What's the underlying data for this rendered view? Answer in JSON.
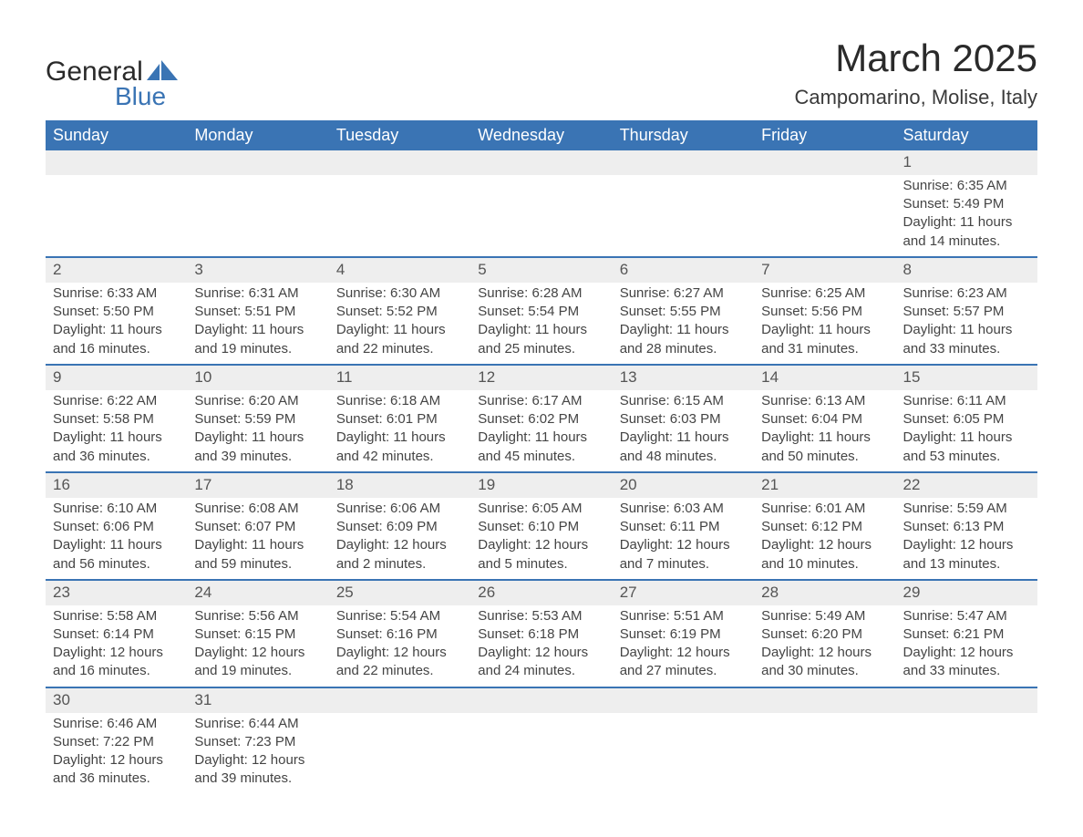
{
  "brand": {
    "name1": "General",
    "name2": "Blue"
  },
  "title": "March 2025",
  "location": "Campomarino, Molise, Italy",
  "colors": {
    "header_bg": "#3a74b4",
    "header_fg": "#ffffff",
    "daynum_bg": "#eeeeee",
    "row_border": "#3a74b4",
    "text": "#3a3a3a",
    "page_bg": "#ffffff"
  },
  "weekdays": [
    "Sunday",
    "Monday",
    "Tuesday",
    "Wednesday",
    "Thursday",
    "Friday",
    "Saturday"
  ],
  "weeks": [
    [
      null,
      null,
      null,
      null,
      null,
      null,
      {
        "n": "1",
        "sr": "6:35 AM",
        "ss": "5:49 PM",
        "dl": "11 hours and 14 minutes."
      }
    ],
    [
      {
        "n": "2",
        "sr": "6:33 AM",
        "ss": "5:50 PM",
        "dl": "11 hours and 16 minutes."
      },
      {
        "n": "3",
        "sr": "6:31 AM",
        "ss": "5:51 PM",
        "dl": "11 hours and 19 minutes."
      },
      {
        "n": "4",
        "sr": "6:30 AM",
        "ss": "5:52 PM",
        "dl": "11 hours and 22 minutes."
      },
      {
        "n": "5",
        "sr": "6:28 AM",
        "ss": "5:54 PM",
        "dl": "11 hours and 25 minutes."
      },
      {
        "n": "6",
        "sr": "6:27 AM",
        "ss": "5:55 PM",
        "dl": "11 hours and 28 minutes."
      },
      {
        "n": "7",
        "sr": "6:25 AM",
        "ss": "5:56 PM",
        "dl": "11 hours and 31 minutes."
      },
      {
        "n": "8",
        "sr": "6:23 AM",
        "ss": "5:57 PM",
        "dl": "11 hours and 33 minutes."
      }
    ],
    [
      {
        "n": "9",
        "sr": "6:22 AM",
        "ss": "5:58 PM",
        "dl": "11 hours and 36 minutes."
      },
      {
        "n": "10",
        "sr": "6:20 AM",
        "ss": "5:59 PM",
        "dl": "11 hours and 39 minutes."
      },
      {
        "n": "11",
        "sr": "6:18 AM",
        "ss": "6:01 PM",
        "dl": "11 hours and 42 minutes."
      },
      {
        "n": "12",
        "sr": "6:17 AM",
        "ss": "6:02 PM",
        "dl": "11 hours and 45 minutes."
      },
      {
        "n": "13",
        "sr": "6:15 AM",
        "ss": "6:03 PM",
        "dl": "11 hours and 48 minutes."
      },
      {
        "n": "14",
        "sr": "6:13 AM",
        "ss": "6:04 PM",
        "dl": "11 hours and 50 minutes."
      },
      {
        "n": "15",
        "sr": "6:11 AM",
        "ss": "6:05 PM",
        "dl": "11 hours and 53 minutes."
      }
    ],
    [
      {
        "n": "16",
        "sr": "6:10 AM",
        "ss": "6:06 PM",
        "dl": "11 hours and 56 minutes."
      },
      {
        "n": "17",
        "sr": "6:08 AM",
        "ss": "6:07 PM",
        "dl": "11 hours and 59 minutes."
      },
      {
        "n": "18",
        "sr": "6:06 AM",
        "ss": "6:09 PM",
        "dl": "12 hours and 2 minutes."
      },
      {
        "n": "19",
        "sr": "6:05 AM",
        "ss": "6:10 PM",
        "dl": "12 hours and 5 minutes."
      },
      {
        "n": "20",
        "sr": "6:03 AM",
        "ss": "6:11 PM",
        "dl": "12 hours and 7 minutes."
      },
      {
        "n": "21",
        "sr": "6:01 AM",
        "ss": "6:12 PM",
        "dl": "12 hours and 10 minutes."
      },
      {
        "n": "22",
        "sr": "5:59 AM",
        "ss": "6:13 PM",
        "dl": "12 hours and 13 minutes."
      }
    ],
    [
      {
        "n": "23",
        "sr": "5:58 AM",
        "ss": "6:14 PM",
        "dl": "12 hours and 16 minutes."
      },
      {
        "n": "24",
        "sr": "5:56 AM",
        "ss": "6:15 PM",
        "dl": "12 hours and 19 minutes."
      },
      {
        "n": "25",
        "sr": "5:54 AM",
        "ss": "6:16 PM",
        "dl": "12 hours and 22 minutes."
      },
      {
        "n": "26",
        "sr": "5:53 AM",
        "ss": "6:18 PM",
        "dl": "12 hours and 24 minutes."
      },
      {
        "n": "27",
        "sr": "5:51 AM",
        "ss": "6:19 PM",
        "dl": "12 hours and 27 minutes."
      },
      {
        "n": "28",
        "sr": "5:49 AM",
        "ss": "6:20 PM",
        "dl": "12 hours and 30 minutes."
      },
      {
        "n": "29",
        "sr": "5:47 AM",
        "ss": "6:21 PM",
        "dl": "12 hours and 33 minutes."
      }
    ],
    [
      {
        "n": "30",
        "sr": "6:46 AM",
        "ss": "7:22 PM",
        "dl": "12 hours and 36 minutes."
      },
      {
        "n": "31",
        "sr": "6:44 AM",
        "ss": "7:23 PM",
        "dl": "12 hours and 39 minutes."
      },
      null,
      null,
      null,
      null,
      null
    ]
  ],
  "labels": {
    "sunrise": "Sunrise: ",
    "sunset": "Sunset: ",
    "daylight": "Daylight: "
  }
}
